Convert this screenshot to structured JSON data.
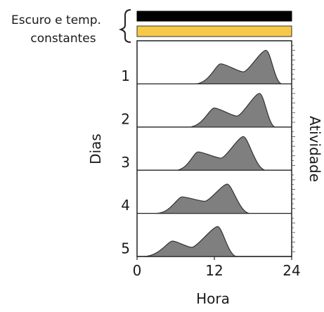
{
  "chart_data": {
    "type": "area",
    "title": "",
    "condition_label_line1": "Escuro e temp.",
    "condition_label_line2": "constantes",
    "condition_bars": [
      {
        "name": "escuro",
        "color": "#000000"
      },
      {
        "name": "temperatura",
        "color": "#f7c948"
      }
    ],
    "xlabel": "Hora",
    "ylabel_left": "Dias",
    "ylabel_right": "Atividade",
    "xlim": [
      0,
      24
    ],
    "xticks": [
      "0",
      "12",
      "24"
    ],
    "fill_color": "#7f7f7f",
    "days": [
      {
        "label": "1",
        "start": 9,
        "end": 22.5,
        "peak1": {
          "x": 13,
          "h": 0.55
        },
        "trough": {
          "x": 16.5,
          "h": 0.33
        },
        "peak2": {
          "x": 20,
          "h": 0.92
        }
      },
      {
        "label": "2",
        "start": 8,
        "end": 21.5,
        "peak1": {
          "x": 12,
          "h": 0.52
        },
        "trough": {
          "x": 15.5,
          "h": 0.3
        },
        "peak2": {
          "x": 19,
          "h": 0.92
        }
      },
      {
        "label": "3",
        "start": 6,
        "end": 20,
        "peak1": {
          "x": 9.5,
          "h": 0.5
        },
        "trough": {
          "x": 13,
          "h": 0.33
        },
        "peak2": {
          "x": 16.5,
          "h": 0.92
        }
      },
      {
        "label": "4",
        "start": 3,
        "end": 17.5,
        "peak1": {
          "x": 7,
          "h": 0.45
        },
        "trough": {
          "x": 10.5,
          "h": 0.33
        },
        "peak2": {
          "x": 14,
          "h": 0.8
        }
      },
      {
        "label": "5",
        "start": 1,
        "end": 15.5,
        "peak1": {
          "x": 5.5,
          "h": 0.42
        },
        "trough": {
          "x": 8.5,
          "h": 0.25
        },
        "peak2": {
          "x": 12.5,
          "h": 0.82
        }
      }
    ]
  }
}
